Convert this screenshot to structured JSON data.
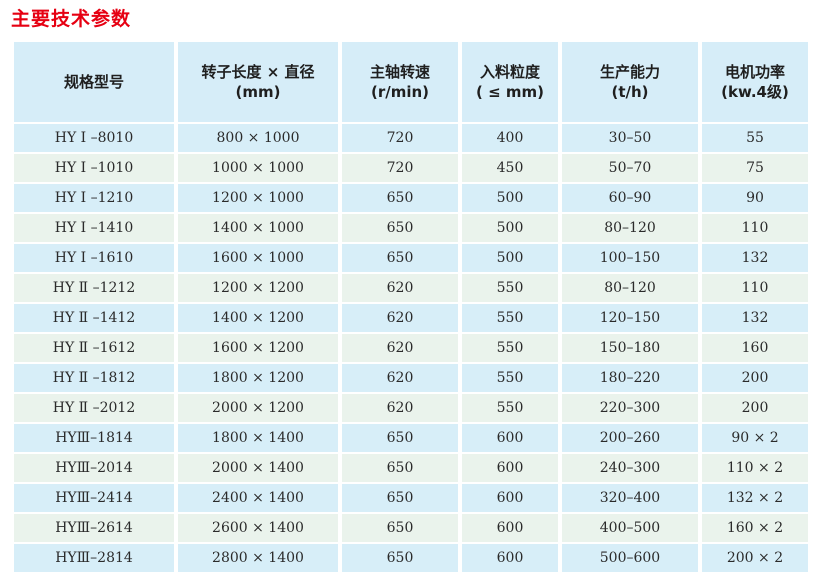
{
  "page": {
    "title": "主要技术参数"
  },
  "colors": {
    "title_red": "#e60012",
    "header_blue": "#d6edf8",
    "row_blue": "#d7eef8",
    "row_green": "#eaf3ec",
    "text_dark": "#1f1f1f"
  },
  "table": {
    "columns": [
      {
        "label": "规格型号",
        "unit": ""
      },
      {
        "label": "转子长度 × 直径",
        "unit": "(mm)"
      },
      {
        "label": "主轴转速",
        "unit": "(r/min)"
      },
      {
        "label": "入料粒度",
        "unit": "( ≤ mm)"
      },
      {
        "label": "生产能力",
        "unit": "(t/h)"
      },
      {
        "label": "电机功率",
        "unit": "(kw.4级)"
      }
    ],
    "rows": [
      [
        "HY Ⅰ –8010",
        "800 × 1000",
        "720",
        "400",
        "30–50",
        "55"
      ],
      [
        "HY Ⅰ –1010",
        "1000 × 1000",
        "720",
        "450",
        "50–70",
        "75"
      ],
      [
        "HY Ⅰ –1210",
        "1200 × 1000",
        "650",
        "500",
        "60–90",
        "90"
      ],
      [
        "HY Ⅰ –1410",
        "1400 × 1000",
        "650",
        "500",
        "80–120",
        "110"
      ],
      [
        "HY Ⅰ –1610",
        "1600 × 1000",
        "650",
        "500",
        "100–150",
        "132"
      ],
      [
        "HY Ⅱ –1212",
        "1200 × 1200",
        "620",
        "550",
        "80–120",
        "110"
      ],
      [
        "HY Ⅱ –1412",
        "1400 × 1200",
        "620",
        "550",
        "120–150",
        "132"
      ],
      [
        "HY Ⅱ –1612",
        "1600 × 1200",
        "620",
        "550",
        "150–180",
        "160"
      ],
      [
        "HY Ⅱ –1812",
        "1800 × 1200",
        "620",
        "550",
        "180–220",
        "200"
      ],
      [
        "HY Ⅱ –2012",
        "2000 × 1200",
        "620",
        "550",
        "220–300",
        "200"
      ],
      [
        "HYⅢ–1814",
        "1800 × 1400",
        "650",
        "600",
        "200–260",
        "90 × 2"
      ],
      [
        "HYⅢ–2014",
        "2000 × 1400",
        "650",
        "600",
        "240–300",
        "110 × 2"
      ],
      [
        "HYⅢ–2414",
        "2400 × 1400",
        "650",
        "600",
        "320–400",
        "132 × 2"
      ],
      [
        "HYⅢ–2614",
        "2600 × 1400",
        "650",
        "600",
        "400–500",
        "160 × 2"
      ],
      [
        "HYⅢ–2814",
        "2800 × 1400",
        "650",
        "600",
        "500–600",
        "200 × 2"
      ]
    ]
  }
}
